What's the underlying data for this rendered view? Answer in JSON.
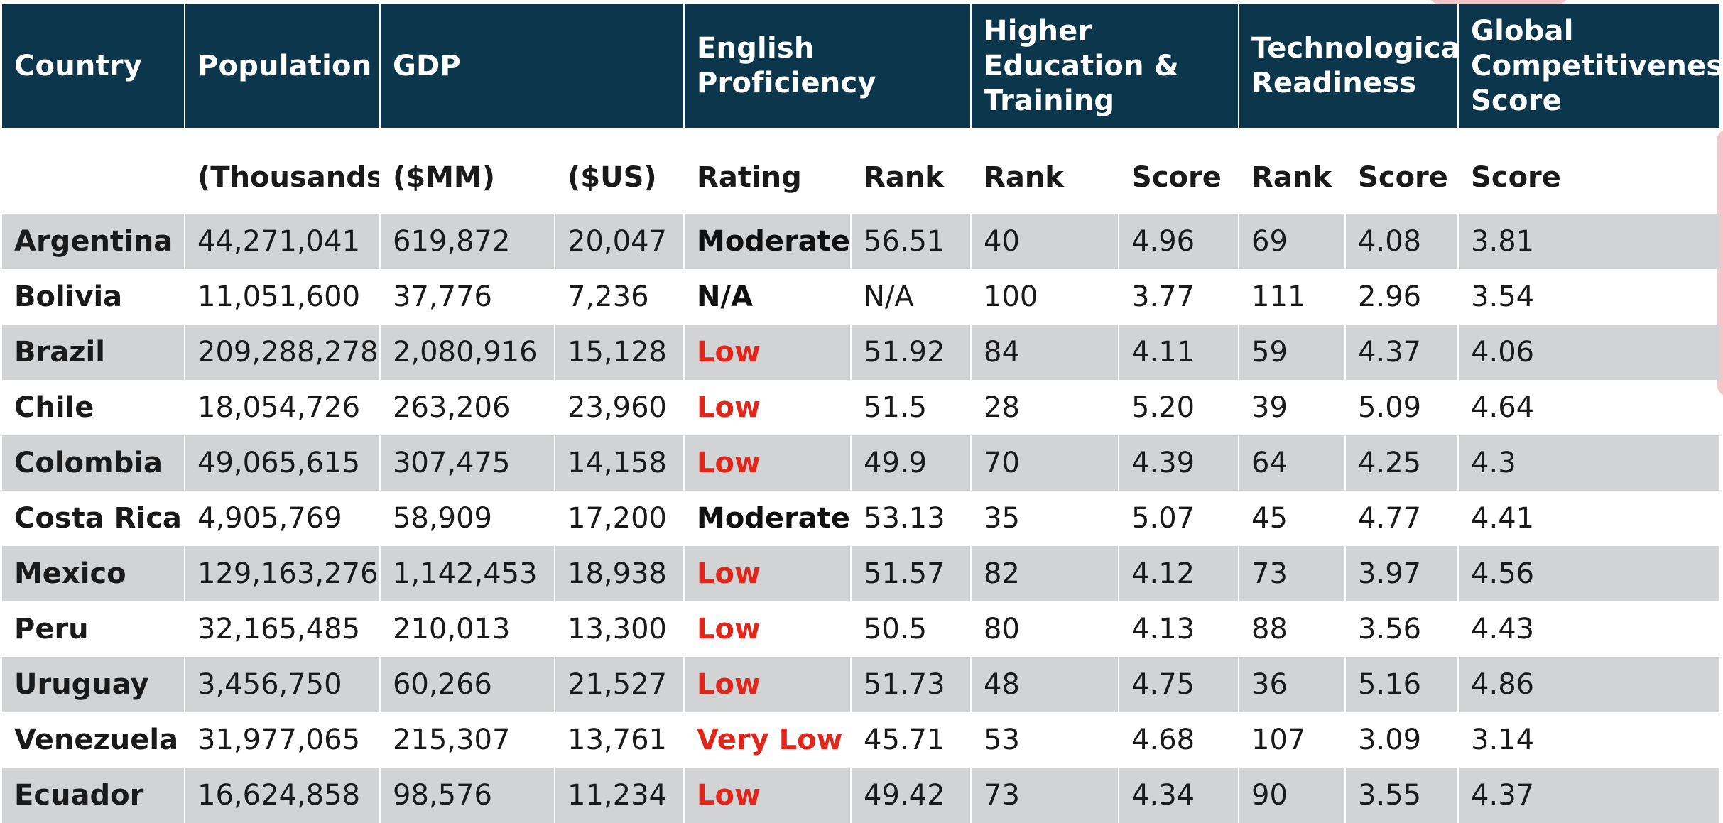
{
  "colors": {
    "header_bg": "#0b364b",
    "country_text": "#0b364b",
    "low_text": "#e1261c",
    "neutral_text": "#111111",
    "shade_row": "#d2d3d5"
  },
  "header": {
    "country": "Country",
    "population": "Population",
    "gdp": "GDP",
    "english": "English Proficiency",
    "higher_ed": "Higher Education & Training",
    "tech": "Technological Readiness",
    "gci": "Global Competitiveness Score"
  },
  "subheader": {
    "population": "(Thousands)",
    "gdp_mm": "($MM)",
    "gdp_us": "($US)",
    "eng_rating": "Rating",
    "eng_rank": "Rank",
    "he_rank": "Rank",
    "he_score": "Score",
    "tech_rank": "Rank",
    "tech_score": "Score",
    "gci_score": "Score"
  },
  "rows": [
    [
      "Argentina",
      "44,271,041",
      "619,872",
      "20,047",
      "Moderate",
      "56.51",
      "40",
      "4.96",
      "69",
      "4.08",
      "3.81"
    ],
    [
      "Bolivia",
      "11,051,600",
      "37,776",
      "7,236",
      "N/A",
      "N/A",
      "100",
      "3.77",
      "111",
      "2.96",
      "3.54"
    ],
    [
      "Brazil",
      "209,288,278",
      "2,080,916",
      "15,128",
      "Low",
      "51.92",
      "84",
      "4.11",
      "59",
      "4.37",
      "4.06"
    ],
    [
      "Chile",
      "18,054,726",
      "263,206",
      "23,960",
      "Low",
      "51.5",
      "28",
      "5.20",
      "39",
      "5.09",
      "4.64"
    ],
    [
      "Colombia",
      "49,065,615",
      "307,475",
      "14,158",
      "Low",
      "49.9",
      "70",
      "4.39",
      "64",
      "4.25",
      "4.3"
    ],
    [
      "Costa Rica",
      "4,905,769",
      "58,909",
      "17,200",
      "Moderate",
      "53.13",
      "35",
      "5.07",
      "45",
      "4.77",
      "4.41"
    ],
    [
      "Mexico",
      "129,163,276",
      "1,142,453",
      "18,938",
      "Low",
      "51.57",
      "82",
      "4.12",
      "73",
      "3.97",
      "4.56"
    ],
    [
      "Peru",
      "32,165,485",
      "210,013",
      "13,300",
      "Low",
      "50.5",
      "80",
      "4.13",
      "88",
      "3.56",
      "4.43"
    ],
    [
      "Uruguay",
      "3,456,750",
      "60,266",
      "21,527",
      "Low",
      "51.73",
      "48",
      "4.75",
      "36",
      "5.16",
      "4.86"
    ],
    [
      "Venezuela",
      "31,977,065",
      "215,307",
      "13,761",
      "Very Low",
      "45.71",
      "53",
      "4.68",
      "107",
      "3.09",
      "3.14"
    ],
    [
      "Ecuador",
      "16,624,858",
      "98,576",
      "11,234",
      "Low",
      "49.42",
      "73",
      "4.34",
      "90",
      "3.55",
      "4.37"
    ]
  ]
}
